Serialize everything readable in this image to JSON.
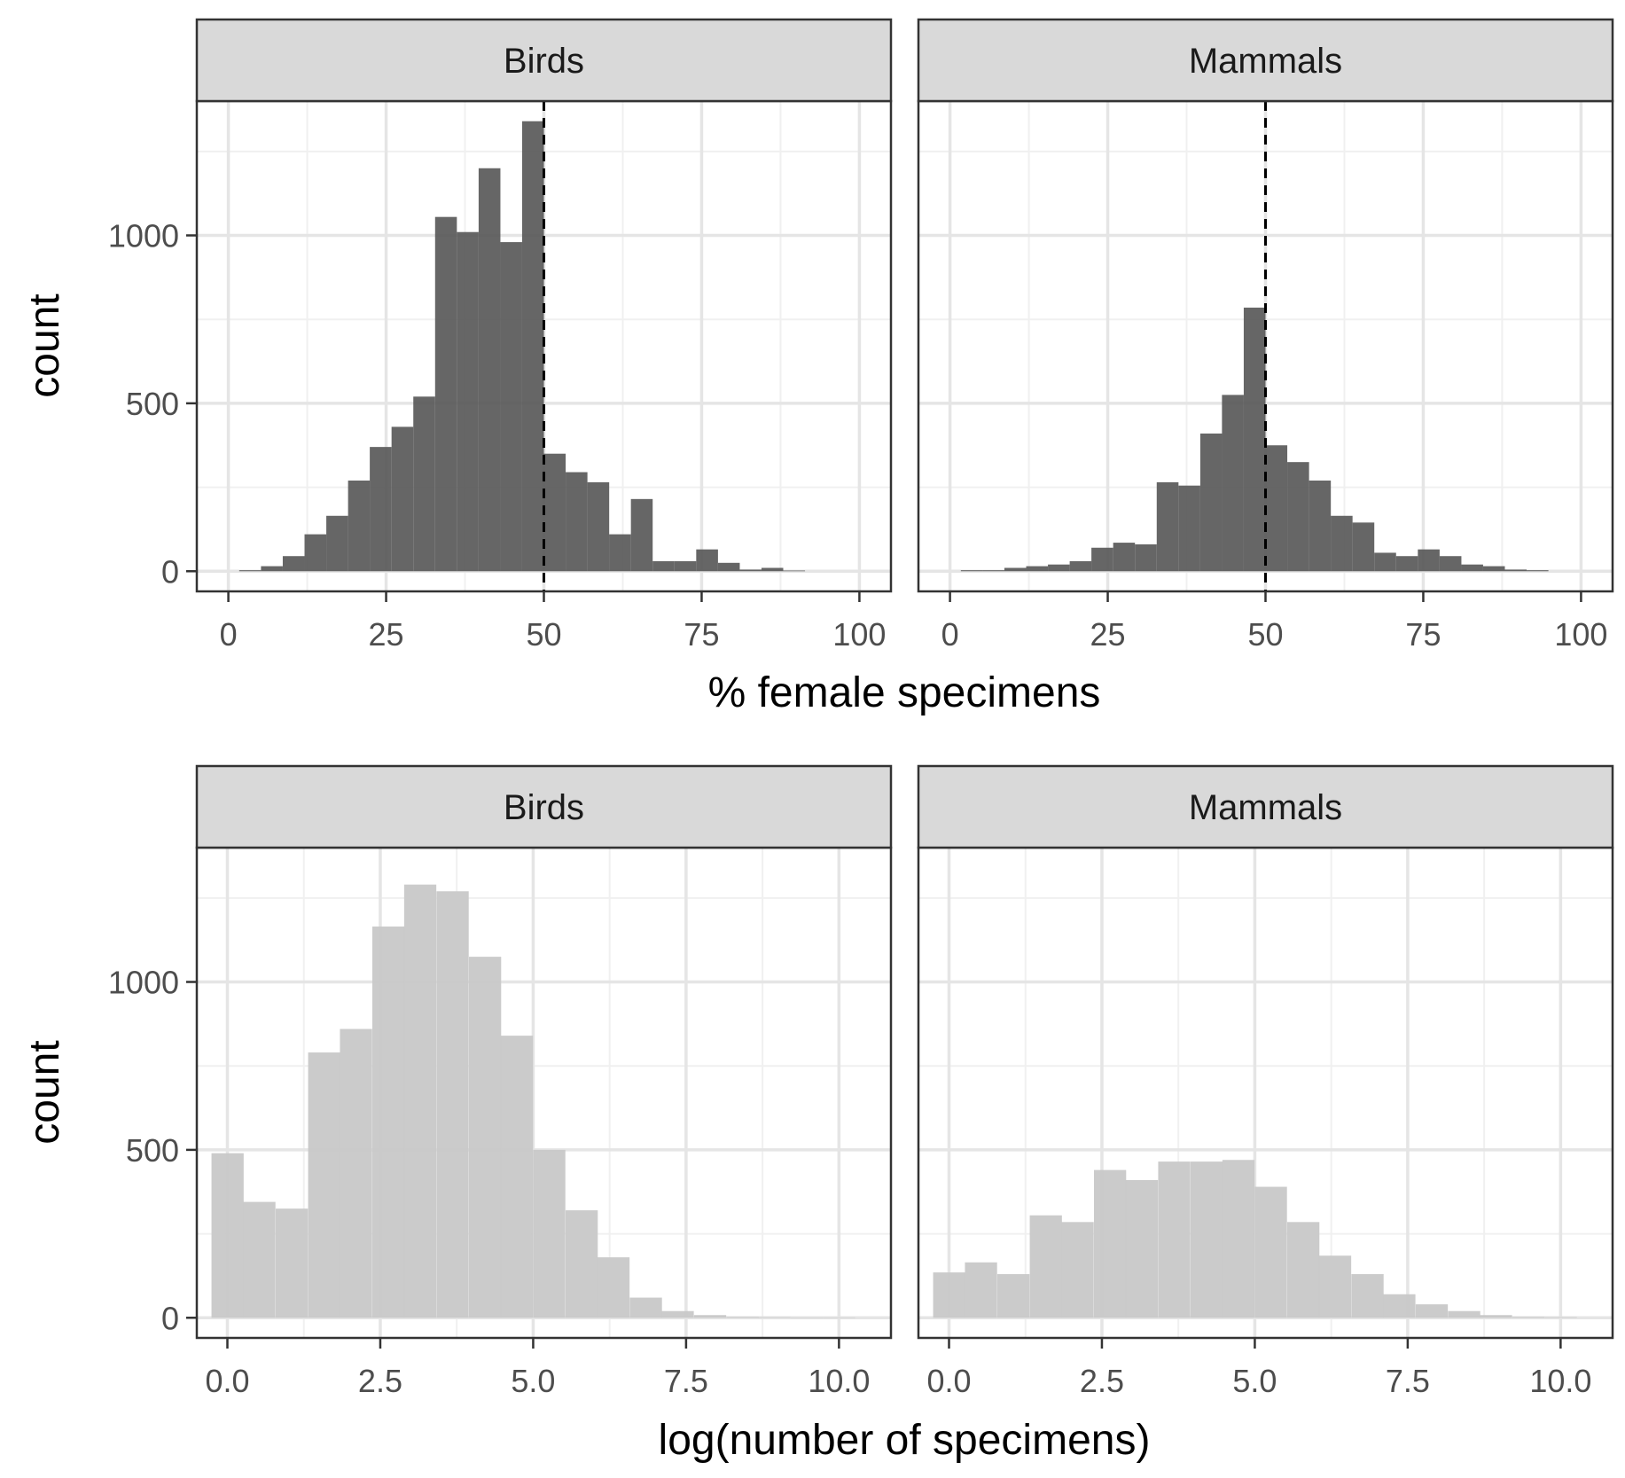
{
  "chart_data": [
    {
      "type": "bar",
      "subtype": "histogram",
      "facets": [
        "Birds",
        "Mammals"
      ],
      "xlabel": "% female specimens",
      "ylabel": "count",
      "xlim": [
        -5,
        105
      ],
      "ylim": [
        -60,
        1400
      ],
      "xticks": [
        "0",
        "25",
        "50",
        "75",
        "100"
      ],
      "yticks": [
        "0",
        "500",
        "1000"
      ],
      "bar_color": "#595959",
      "reference_line": {
        "x": 50,
        "style": "dashed",
        "color": "#000000"
      },
      "grid": true,
      "series": [
        {
          "name": "Birds",
          "bins_left": [
            1.72,
            5.17,
            8.62,
            12.07,
            15.52,
            18.97,
            22.41,
            25.86,
            29.31,
            32.76,
            36.21,
            39.66,
            43.1,
            46.55,
            50,
            53.45,
            56.9,
            60.34,
            63.79,
            67.24,
            70.69,
            74.14,
            77.59,
            81.03,
            84.48,
            87.93
          ],
          "bin_width": 3.45,
          "values": [
            3,
            15,
            45,
            110,
            165,
            270,
            370,
            430,
            520,
            1055,
            1010,
            1200,
            980,
            1340,
            350,
            295,
            265,
            110,
            215,
            30,
            30,
            65,
            25,
            5,
            10,
            2
          ]
        },
        {
          "name": "Mammals",
          "bins_left": [
            1.72,
            5.17,
            8.62,
            12.07,
            15.52,
            18.97,
            22.41,
            25.86,
            29.31,
            32.76,
            36.21,
            39.66,
            43.1,
            46.55,
            50,
            53.45,
            56.9,
            60.34,
            63.79,
            67.24,
            70.69,
            74.14,
            77.59,
            81.03,
            84.48,
            87.93,
            91.38
          ],
          "bin_width": 3.45,
          "values": [
            3,
            3,
            10,
            15,
            20,
            30,
            70,
            85,
            80,
            265,
            255,
            410,
            525,
            785,
            375,
            325,
            270,
            165,
            145,
            55,
            45,
            65,
            45,
            20,
            15,
            5,
            3
          ]
        }
      ]
    },
    {
      "type": "bar",
      "subtype": "histogram",
      "facets": [
        "Birds",
        "Mammals"
      ],
      "xlabel": "log(number of specimens)",
      "ylabel": "count",
      "xlim": [
        -0.5,
        10.85
      ],
      "ylim": [
        -60,
        1400
      ],
      "xticks": [
        "0.0",
        "2.5",
        "5.0",
        "7.5",
        "10.0"
      ],
      "yticks": [
        "0",
        "500",
        "1000"
      ],
      "bar_color": "#c8c8c8",
      "grid": true,
      "series": [
        {
          "name": "Birds",
          "bins_left": [
            -0.26,
            0.26,
            0.79,
            1.32,
            1.84,
            2.37,
            2.89,
            3.42,
            3.95,
            4.47,
            5,
            5.53,
            6.05,
            6.58,
            7.1,
            7.63,
            8.16,
            8.68,
            9.21,
            9.74
          ],
          "bin_width": 0.526,
          "values": [
            490,
            345,
            325,
            790,
            860,
            1165,
            1290,
            1270,
            1075,
            840,
            500,
            320,
            180,
            60,
            20,
            8,
            3,
            2,
            1,
            1
          ]
        },
        {
          "name": "Mammals",
          "bins_left": [
            -0.26,
            0.26,
            0.79,
            1.32,
            1.84,
            2.37,
            2.89,
            3.42,
            3.95,
            4.47,
            5,
            5.53,
            6.05,
            6.58,
            7.1,
            7.63,
            8.16,
            8.68,
            9.21,
            9.74
          ],
          "bin_width": 0.526,
          "values": [
            135,
            165,
            130,
            305,
            285,
            440,
            410,
            465,
            465,
            470,
            390,
            285,
            185,
            130,
            70,
            40,
            20,
            8,
            3,
            2
          ]
        }
      ]
    }
  ]
}
